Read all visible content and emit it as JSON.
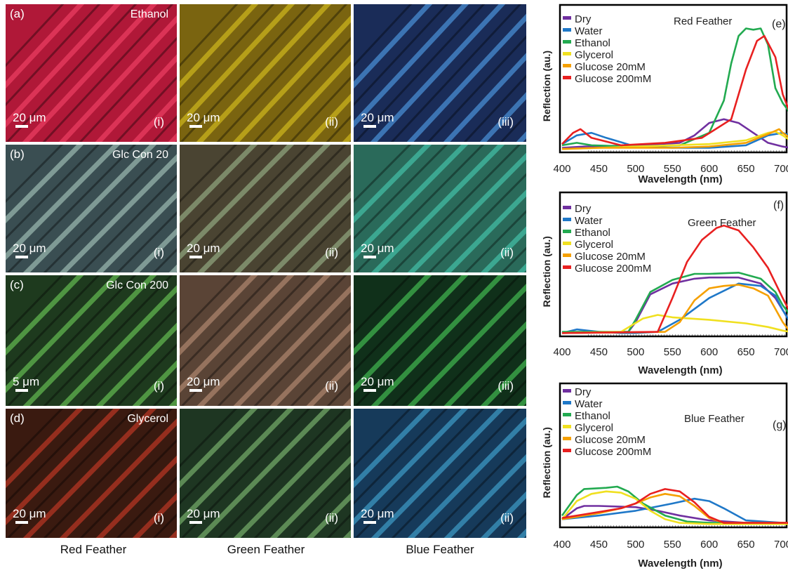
{
  "panels": {
    "row_labels": [
      "(a)",
      "(b)",
      "(c)",
      "(d)"
    ],
    "treatment_labels": [
      "Ethanol",
      "Glc Con 20",
      "Glc Con 200",
      "Glycerol"
    ],
    "rows": [
      [
        {
          "roman": "(i)",
          "scale": "20 μm",
          "color": "#b01838",
          "accent": "#ff4a70"
        },
        {
          "roman": "(ii)",
          "scale": "20 μm",
          "color": "#7a6410",
          "accent": "#e8d020"
        },
        {
          "roman": "(iii)",
          "scale": "20 μm",
          "color": "#1a2c58",
          "accent": "#5ab0ff"
        }
      ],
      [
        {
          "roman": "(i)",
          "scale": "20 μm",
          "color": "#3a4e52",
          "accent": "#b8d8cc"
        },
        {
          "roman": "(ii)",
          "scale": "20 μm",
          "color": "#4a4432",
          "accent": "#a6c498"
        },
        {
          "roman": "(ii)",
          "scale": "20 μm",
          "color": "#2a6a5a",
          "accent": "#4ad8c0"
        }
      ],
      [
        {
          "roman": "(i)",
          "scale": "5 μm",
          "color": "#1e3a1e",
          "accent": "#78e060"
        },
        {
          "roman": "(ii)",
          "scale": "20 μm",
          "color": "#5a4436",
          "accent": "#c89a80"
        },
        {
          "roman": "(iii)",
          "scale": "20 μm",
          "color": "#10301a",
          "accent": "#50e060"
        }
      ],
      [
        {
          "roman": "(i)",
          "scale": "20 μm",
          "color": "#3a1a10",
          "accent": "#e0402a"
        },
        {
          "roman": "(ii)",
          "scale": "20 μm",
          "color": "#1e3622",
          "accent": "#90d080"
        },
        {
          "roman": "(ii)",
          "scale": "20 μm",
          "color": "#163a5a",
          "accent": "#4ab8e8"
        }
      ]
    ],
    "column_captions": [
      "Red Feather",
      "Green Feather",
      "Blue Feather"
    ]
  },
  "chart_data": [
    {
      "type": "line",
      "title": "Red Feather",
      "panel_label": "(e)",
      "xlabel": "Wavelength (nm)",
      "ylabel": "Reflection (au.)",
      "xlim": [
        400,
        710
      ],
      "ylim": [
        0,
        1
      ],
      "xticks": [
        400,
        450,
        500,
        550,
        600,
        650,
        700
      ],
      "series": [
        {
          "name": "Dry",
          "color": "#7030a0",
          "x": [
            400,
            430,
            500,
            560,
            580,
            600,
            620,
            640,
            660,
            680,
            700,
            710
          ],
          "y": [
            0.02,
            0.03,
            0.04,
            0.06,
            0.12,
            0.22,
            0.25,
            0.22,
            0.14,
            0.06,
            0.03,
            0.02
          ]
        },
        {
          "name": "Water",
          "color": "#1f78c8",
          "x": [
            400,
            420,
            440,
            460,
            500,
            550,
            600,
            650,
            680,
            700,
            710
          ],
          "y": [
            0.05,
            0.12,
            0.14,
            0.1,
            0.03,
            0.02,
            0.02,
            0.04,
            0.12,
            0.14,
            0.12
          ]
        },
        {
          "name": "Ethanol",
          "color": "#22aa50",
          "x": [
            400,
            420,
            440,
            500,
            560,
            600,
            620,
            630,
            640,
            650,
            660,
            670,
            680,
            690,
            700,
            710
          ],
          "y": [
            0.04,
            0.06,
            0.04,
            0.03,
            0.04,
            0.14,
            0.4,
            0.7,
            0.92,
            0.98,
            0.97,
            0.98,
            0.85,
            0.5,
            0.38,
            0.3
          ]
        },
        {
          "name": "Glycerol",
          "color": "#f0e020",
          "x": [
            400,
            450,
            500,
            550,
            600,
            650,
            680,
            690,
            700,
            710
          ],
          "y": [
            0.01,
            0.02,
            0.03,
            0.04,
            0.05,
            0.08,
            0.14,
            0.15,
            0.12,
            0.08
          ]
        },
        {
          "name": "Glucose 20mM",
          "color": "#f5a000",
          "x": [
            400,
            450,
            500,
            550,
            600,
            650,
            680,
            695,
            700,
            710
          ],
          "y": [
            0.01,
            0.02,
            0.02,
            0.02,
            0.03,
            0.06,
            0.13,
            0.17,
            0.14,
            0.1
          ]
        },
        {
          "name": "Glucose 200mM",
          "color": "#e82020",
          "x": [
            400,
            415,
            425,
            440,
            480,
            540,
            590,
            630,
            650,
            665,
            675,
            690,
            700,
            710
          ],
          "y": [
            0.05,
            0.14,
            0.17,
            0.1,
            0.04,
            0.06,
            0.1,
            0.25,
            0.65,
            0.88,
            0.92,
            0.75,
            0.45,
            0.3
          ]
        }
      ]
    },
    {
      "type": "line",
      "title": "Green Feather",
      "panel_label": "(f)",
      "xlabel": "Wavelength (nm)",
      "ylabel": "Reflection (au.)",
      "xlim": [
        400,
        710
      ],
      "ylim": [
        0,
        1
      ],
      "xticks": [
        400,
        450,
        500,
        550,
        600,
        650,
        700
      ],
      "series": [
        {
          "name": "Dry",
          "color": "#7030a0",
          "x": [
            400,
            490,
            500,
            520,
            550,
            580,
            600,
            640,
            670,
            690,
            700,
            710
          ],
          "y": [
            0.01,
            0.02,
            0.1,
            0.33,
            0.42,
            0.46,
            0.47,
            0.47,
            0.42,
            0.3,
            0.2,
            0.1
          ]
        },
        {
          "name": "Water",
          "color": "#1f78c8",
          "x": [
            400,
            420,
            450,
            480,
            500,
            530,
            560,
            600,
            640,
            670,
            690,
            700,
            710
          ],
          "y": [
            0.01,
            0.04,
            0.02,
            0.01,
            0.01,
            0.02,
            0.12,
            0.3,
            0.42,
            0.4,
            0.32,
            0.2,
            0.1
          ]
        },
        {
          "name": "Ethanol",
          "color": "#22aa50",
          "x": [
            400,
            490,
            500,
            520,
            550,
            580,
            600,
            640,
            670,
            690,
            700,
            710
          ],
          "y": [
            0.02,
            0.02,
            0.12,
            0.35,
            0.45,
            0.5,
            0.5,
            0.51,
            0.46,
            0.35,
            0.24,
            0.16
          ]
        },
        {
          "name": "Glycerol",
          "color": "#f0e020",
          "x": [
            400,
            480,
            510,
            530,
            550,
            600,
            650,
            680,
            700,
            710
          ],
          "y": [
            0.01,
            0.02,
            0.13,
            0.16,
            0.14,
            0.12,
            0.09,
            0.06,
            0.03,
            0.02
          ]
        },
        {
          "name": "Glucose 20mM",
          "color": "#f5a000",
          "x": [
            400,
            540,
            560,
            580,
            600,
            620,
            640,
            660,
            680,
            700,
            710
          ],
          "y": [
            0.01,
            0.02,
            0.1,
            0.28,
            0.38,
            0.4,
            0.41,
            0.38,
            0.32,
            0.1,
            0.02
          ]
        },
        {
          "name": "Glucose 200mM",
          "color": "#e82020",
          "x": [
            400,
            530,
            550,
            570,
            590,
            610,
            620,
            640,
            660,
            680,
            700,
            710
          ],
          "y": [
            0.01,
            0.02,
            0.3,
            0.6,
            0.78,
            0.88,
            0.9,
            0.86,
            0.72,
            0.55,
            0.3,
            0.18
          ]
        }
      ]
    },
    {
      "type": "line",
      "title": "Blue Feather",
      "panel_label": "(g)",
      "xlabel": "Wavelength (nm)",
      "ylabel": "Reflection (au.)",
      "xlim": [
        400,
        710
      ],
      "ylim": [
        0,
        1
      ],
      "xticks": [
        400,
        450,
        500,
        550,
        600,
        650,
        700
      ],
      "series": [
        {
          "name": "Dry",
          "color": "#7030a0",
          "x": [
            400,
            420,
            430,
            450,
            500,
            530,
            560,
            600,
            650,
            700,
            710
          ],
          "y": [
            0.05,
            0.14,
            0.16,
            0.16,
            0.15,
            0.12,
            0.08,
            0.04,
            0.02,
            0.02,
            0.02
          ]
        },
        {
          "name": "Water",
          "color": "#1f78c8",
          "x": [
            400,
            450,
            500,
            550,
            580,
            600,
            620,
            650,
            700,
            710
          ],
          "y": [
            0.05,
            0.08,
            0.12,
            0.18,
            0.22,
            0.2,
            0.14,
            0.04,
            0.02,
            0.02
          ]
        },
        {
          "name": "Ethanol",
          "color": "#22aa50",
          "x": [
            400,
            420,
            430,
            460,
            475,
            490,
            510,
            540,
            570,
            600,
            710
          ],
          "y": [
            0.08,
            0.25,
            0.3,
            0.31,
            0.32,
            0.28,
            0.18,
            0.08,
            0.03,
            0.02,
            0.02
          ]
        },
        {
          "name": "Glycerol",
          "color": "#f0e020",
          "x": [
            400,
            420,
            440,
            460,
            480,
            500,
            520,
            540,
            560,
            600,
            710
          ],
          "y": [
            0.05,
            0.2,
            0.26,
            0.28,
            0.27,
            0.22,
            0.12,
            0.05,
            0.02,
            0.01,
            0.01
          ]
        },
        {
          "name": "Glucose 20mM",
          "color": "#f5a000",
          "x": [
            400,
            450,
            480,
            500,
            520,
            540,
            560,
            580,
            600,
            620,
            710
          ],
          "y": [
            0.05,
            0.1,
            0.14,
            0.18,
            0.23,
            0.26,
            0.24,
            0.16,
            0.06,
            0.02,
            0.02
          ]
        },
        {
          "name": "Glucose 200mM",
          "color": "#e82020",
          "x": [
            400,
            450,
            480,
            500,
            520,
            540,
            560,
            580,
            600,
            620,
            710
          ],
          "y": [
            0.06,
            0.11,
            0.14,
            0.18,
            0.26,
            0.3,
            0.28,
            0.19,
            0.07,
            0.02,
            0.02
          ]
        }
      ]
    }
  ]
}
